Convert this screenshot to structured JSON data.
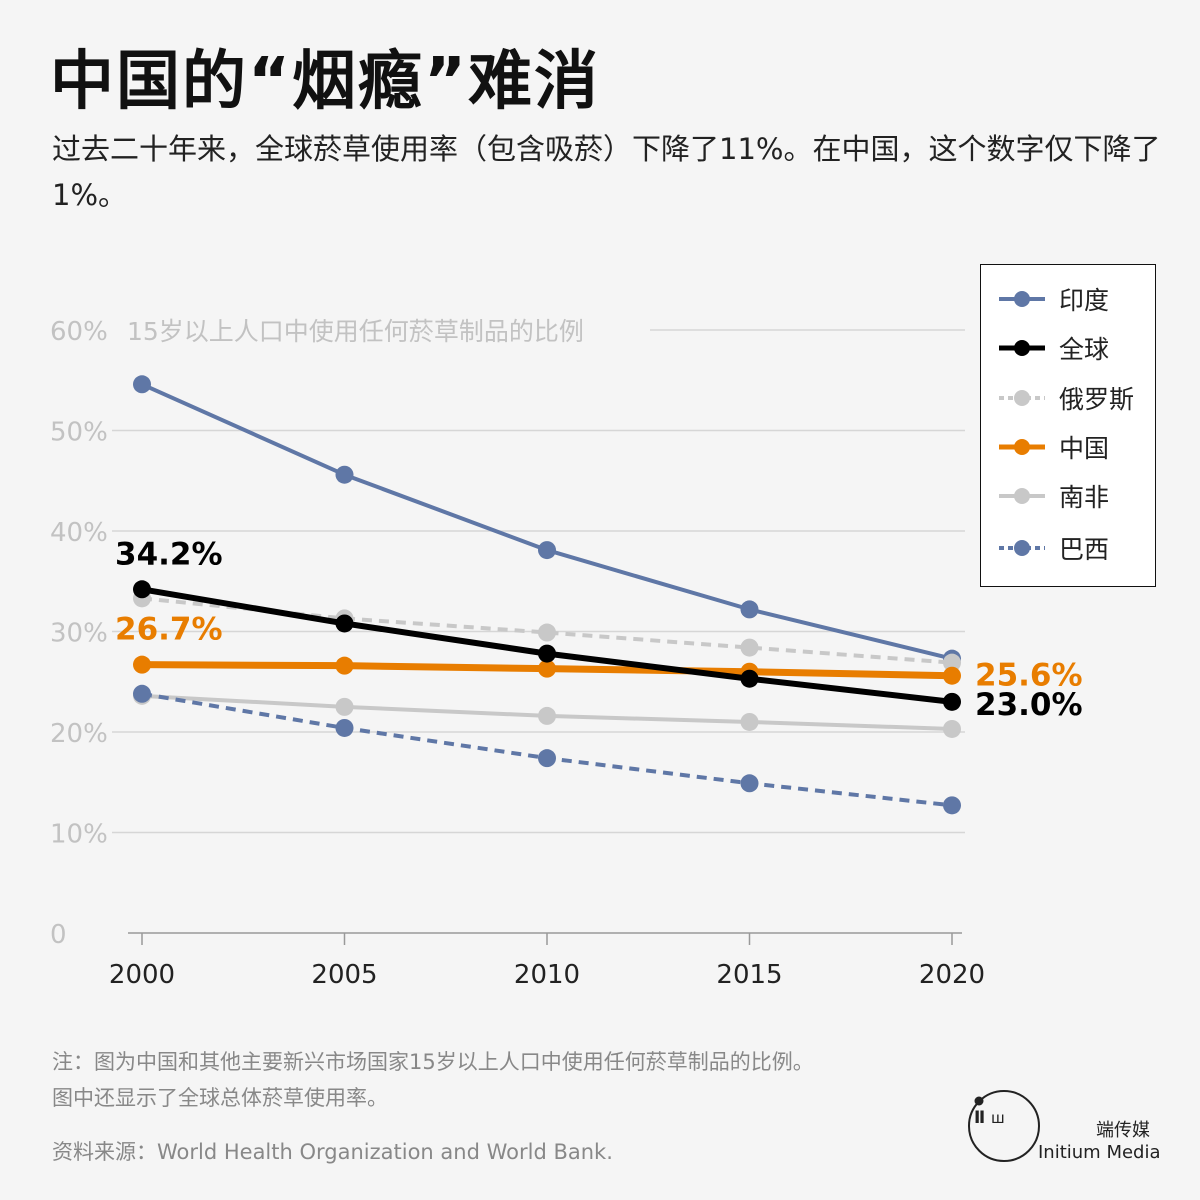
{
  "title": "中国的“烟瘾”难消",
  "subtitle": "过去二十年来，全球菸草使用率（包含吸菸）下降了11%。在中国，这个数字仅下降了1%。",
  "note_lines": [
    "注：图为中国和其他主要新兴市场国家15岁以上人口中使用任何菸草制品的比例。",
    "图中还显示了全球总体菸草使用率。"
  ],
  "source": "资料来源：World Health Organization and World Bank.",
  "logo": {
    "cn": "端传媒",
    "en": "Initium Media"
  },
  "chart_data": {
    "type": "line",
    "title": "15岁以上人口中使用任何菸草制品的比例",
    "x": [
      2000,
      2005,
      2010,
      2015,
      2020
    ],
    "x_tick_labels": [
      "2000",
      "2005",
      "2010",
      "2015",
      "2020"
    ],
    "y_ticks": [
      0,
      10,
      20,
      30,
      40,
      50,
      60
    ],
    "y_tick_labels": [
      "0",
      "10%",
      "20%",
      "30%",
      "40%",
      "50%",
      "60%"
    ],
    "ylim": [
      0,
      60
    ],
    "grid": true,
    "legend_position": "top-right",
    "series": [
      {
        "name": "印度",
        "color": "#5f77a6",
        "dashed": false,
        "width": 4,
        "values": [
          54.6,
          45.6,
          38.1,
          32.2,
          27.3
        ]
      },
      {
        "name": "全球",
        "color": "#000000",
        "dashed": false,
        "width": 6,
        "values": [
          34.2,
          30.8,
          27.8,
          25.3,
          23.0
        ]
      },
      {
        "name": "俄罗斯",
        "color": "#c8c8c8",
        "dashed": true,
        "width": 4,
        "values": [
          33.3,
          31.3,
          29.9,
          28.4,
          26.9
        ]
      },
      {
        "name": "中国",
        "color": "#e87d00",
        "dashed": false,
        "width": 7,
        "values": [
          26.7,
          26.6,
          26.3,
          26.0,
          25.6
        ]
      },
      {
        "name": "南非",
        "color": "#c8c8c8",
        "dashed": false,
        "width": 4,
        "values": [
          23.6,
          22.5,
          21.6,
          21.0,
          20.3
        ]
      },
      {
        "name": "巴西",
        "color": "#5f77a6",
        "dashed": true,
        "width": 4,
        "values": [
          23.8,
          20.4,
          17.4,
          14.9,
          12.7
        ]
      }
    ],
    "annotations": [
      {
        "text": "34.2%",
        "color": "#000000",
        "series": "全球",
        "year": 2000
      },
      {
        "text": "26.7%",
        "color": "#e87d00",
        "series": "中国",
        "year": 2000
      },
      {
        "text": "25.6%",
        "color": "#e87d00",
        "series": "中国",
        "year": 2020
      },
      {
        "text": "23.0%",
        "color": "#000000",
        "series": "全球",
        "year": 2020
      }
    ]
  }
}
